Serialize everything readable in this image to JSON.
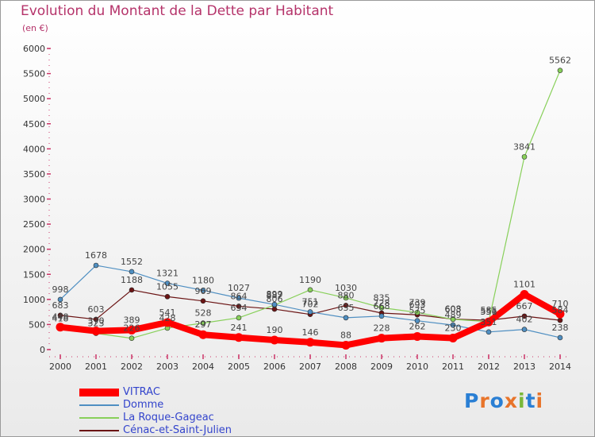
{
  "header": {
    "title": "Evolution du Montant de la Dette par Habitant",
    "subtitle": "(en €)"
  },
  "logo": {
    "text": "Proxiti",
    "colors": [
      "#2a7fd4",
      "#e8742a",
      "#2a7fd4",
      "#e8742a",
      "#7ab83a",
      "#2a7fd4",
      "#e8742a"
    ]
  },
  "chart_data": {
    "type": "line",
    "x": [
      "2000",
      "2001",
      "2002",
      "2003",
      "2004",
      "2005",
      "2006",
      "2007",
      "2008",
      "2009",
      "2010",
      "2011",
      "2012",
      "2013",
      "2014"
    ],
    "yticks": [
      0,
      500,
      1000,
      1500,
      2000,
      2500,
      3000,
      3500,
      4000,
      4500,
      5000,
      5500,
      6000
    ],
    "ylim": [
      0,
      6000
    ],
    "grid": false,
    "legend_position": "bottom-left",
    "series": [
      {
        "name": "Cénac-et-Saint-Julien",
        "color": "#6b1414",
        "width": 1.2,
        "values": [
          683,
          603,
          1188,
          1055,
          969,
          864,
          806,
          702,
          880,
          728,
          693,
          608,
          585,
          667,
          584
        ],
        "labels": [
          "683",
          "603",
          "1188",
          "1055",
          "969",
          "864",
          "806",
          "702",
          "880",
          "728",
          "693",
          "608",
          "585",
          "667",
          "584"
        ]
      },
      {
        "name": "La Roque-Gageac",
        "color": "#88d05a",
        "width": 1.2,
        "values": [
          418,
          323,
          226,
          428,
          528,
          634,
          887,
          1190,
          1030,
          835,
          739,
          603,
          556,
          3841,
          5562
        ],
        "labels": [
          "418",
          "323",
          "226",
          "428",
          "528",
          "634",
          "887",
          "1190",
          "1030",
          "835",
          "739",
          "603",
          "556",
          "3841",
          "5562"
        ]
      },
      {
        "name": "Domme",
        "color": "#4f8fc2",
        "width": 1.2,
        "values": [
          998,
          1678,
          1552,
          1321,
          1180,
          1027,
          899,
          751,
          635,
          668,
          575,
          489,
          351,
          402,
          238
        ],
        "labels": [
          "998",
          "1678",
          "1552",
          "1321",
          "1180",
          "1027",
          "899",
          "751",
          "635",
          "668",
          "575",
          "489",
          "351",
          "402",
          "238"
        ]
      },
      {
        "name": "VITRAC",
        "color": "#ff0000",
        "width": 8,
        "values": [
          448,
          370,
          389,
          541,
          297,
          241,
          190,
          146,
          88,
          228,
          262,
          230,
          551,
          1101,
          710
        ],
        "labels": [
          "448",
          "370",
          "389",
          "541",
          "297",
          "241",
          "190",
          "146",
          "88",
          "228",
          "262",
          "230",
          "551",
          "1101",
          "710"
        ]
      }
    ]
  }
}
